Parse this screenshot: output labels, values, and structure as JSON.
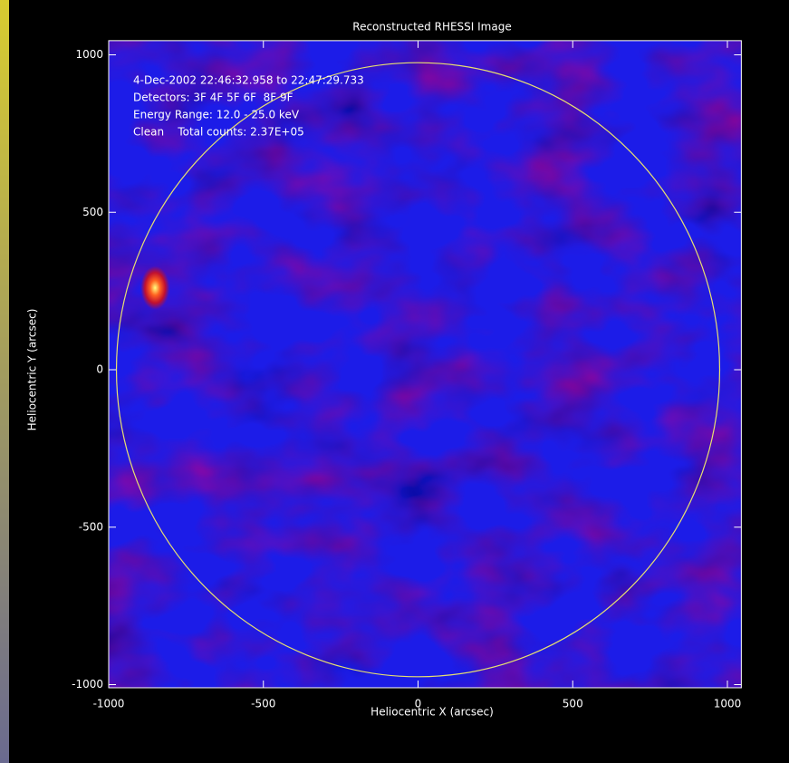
{
  "chart_data": {
    "type": "image",
    "title": "Reconstructed RHESSI Image",
    "x_label": "Heliocentric X (arcsec)",
    "y_label": "Heliocentric Y (arcsec)",
    "annotations": [
      "4-Dec-2002 22:46:32.958 to 22:47:29.733",
      "Detectors: 3F 4F 5F 6F  8F 9F",
      "Energy Range: 12.0 - 25.0 keV",
      "Clean    Total counts: 2.37E+05"
    ],
    "xlim": [
      -1000,
      1045
    ],
    "ylim": [
      -1010,
      1045
    ],
    "xticks": [
      -1000,
      -500,
      0,
      500,
      1000
    ],
    "yticks": [
      -1000,
      -500,
      0,
      500,
      1000
    ],
    "limb_radius": 975,
    "limb_color": "#e8e070",
    "background_color": "#1c1ce8",
    "sources": [
      {
        "x": -850,
        "y": 260
      }
    ]
  }
}
